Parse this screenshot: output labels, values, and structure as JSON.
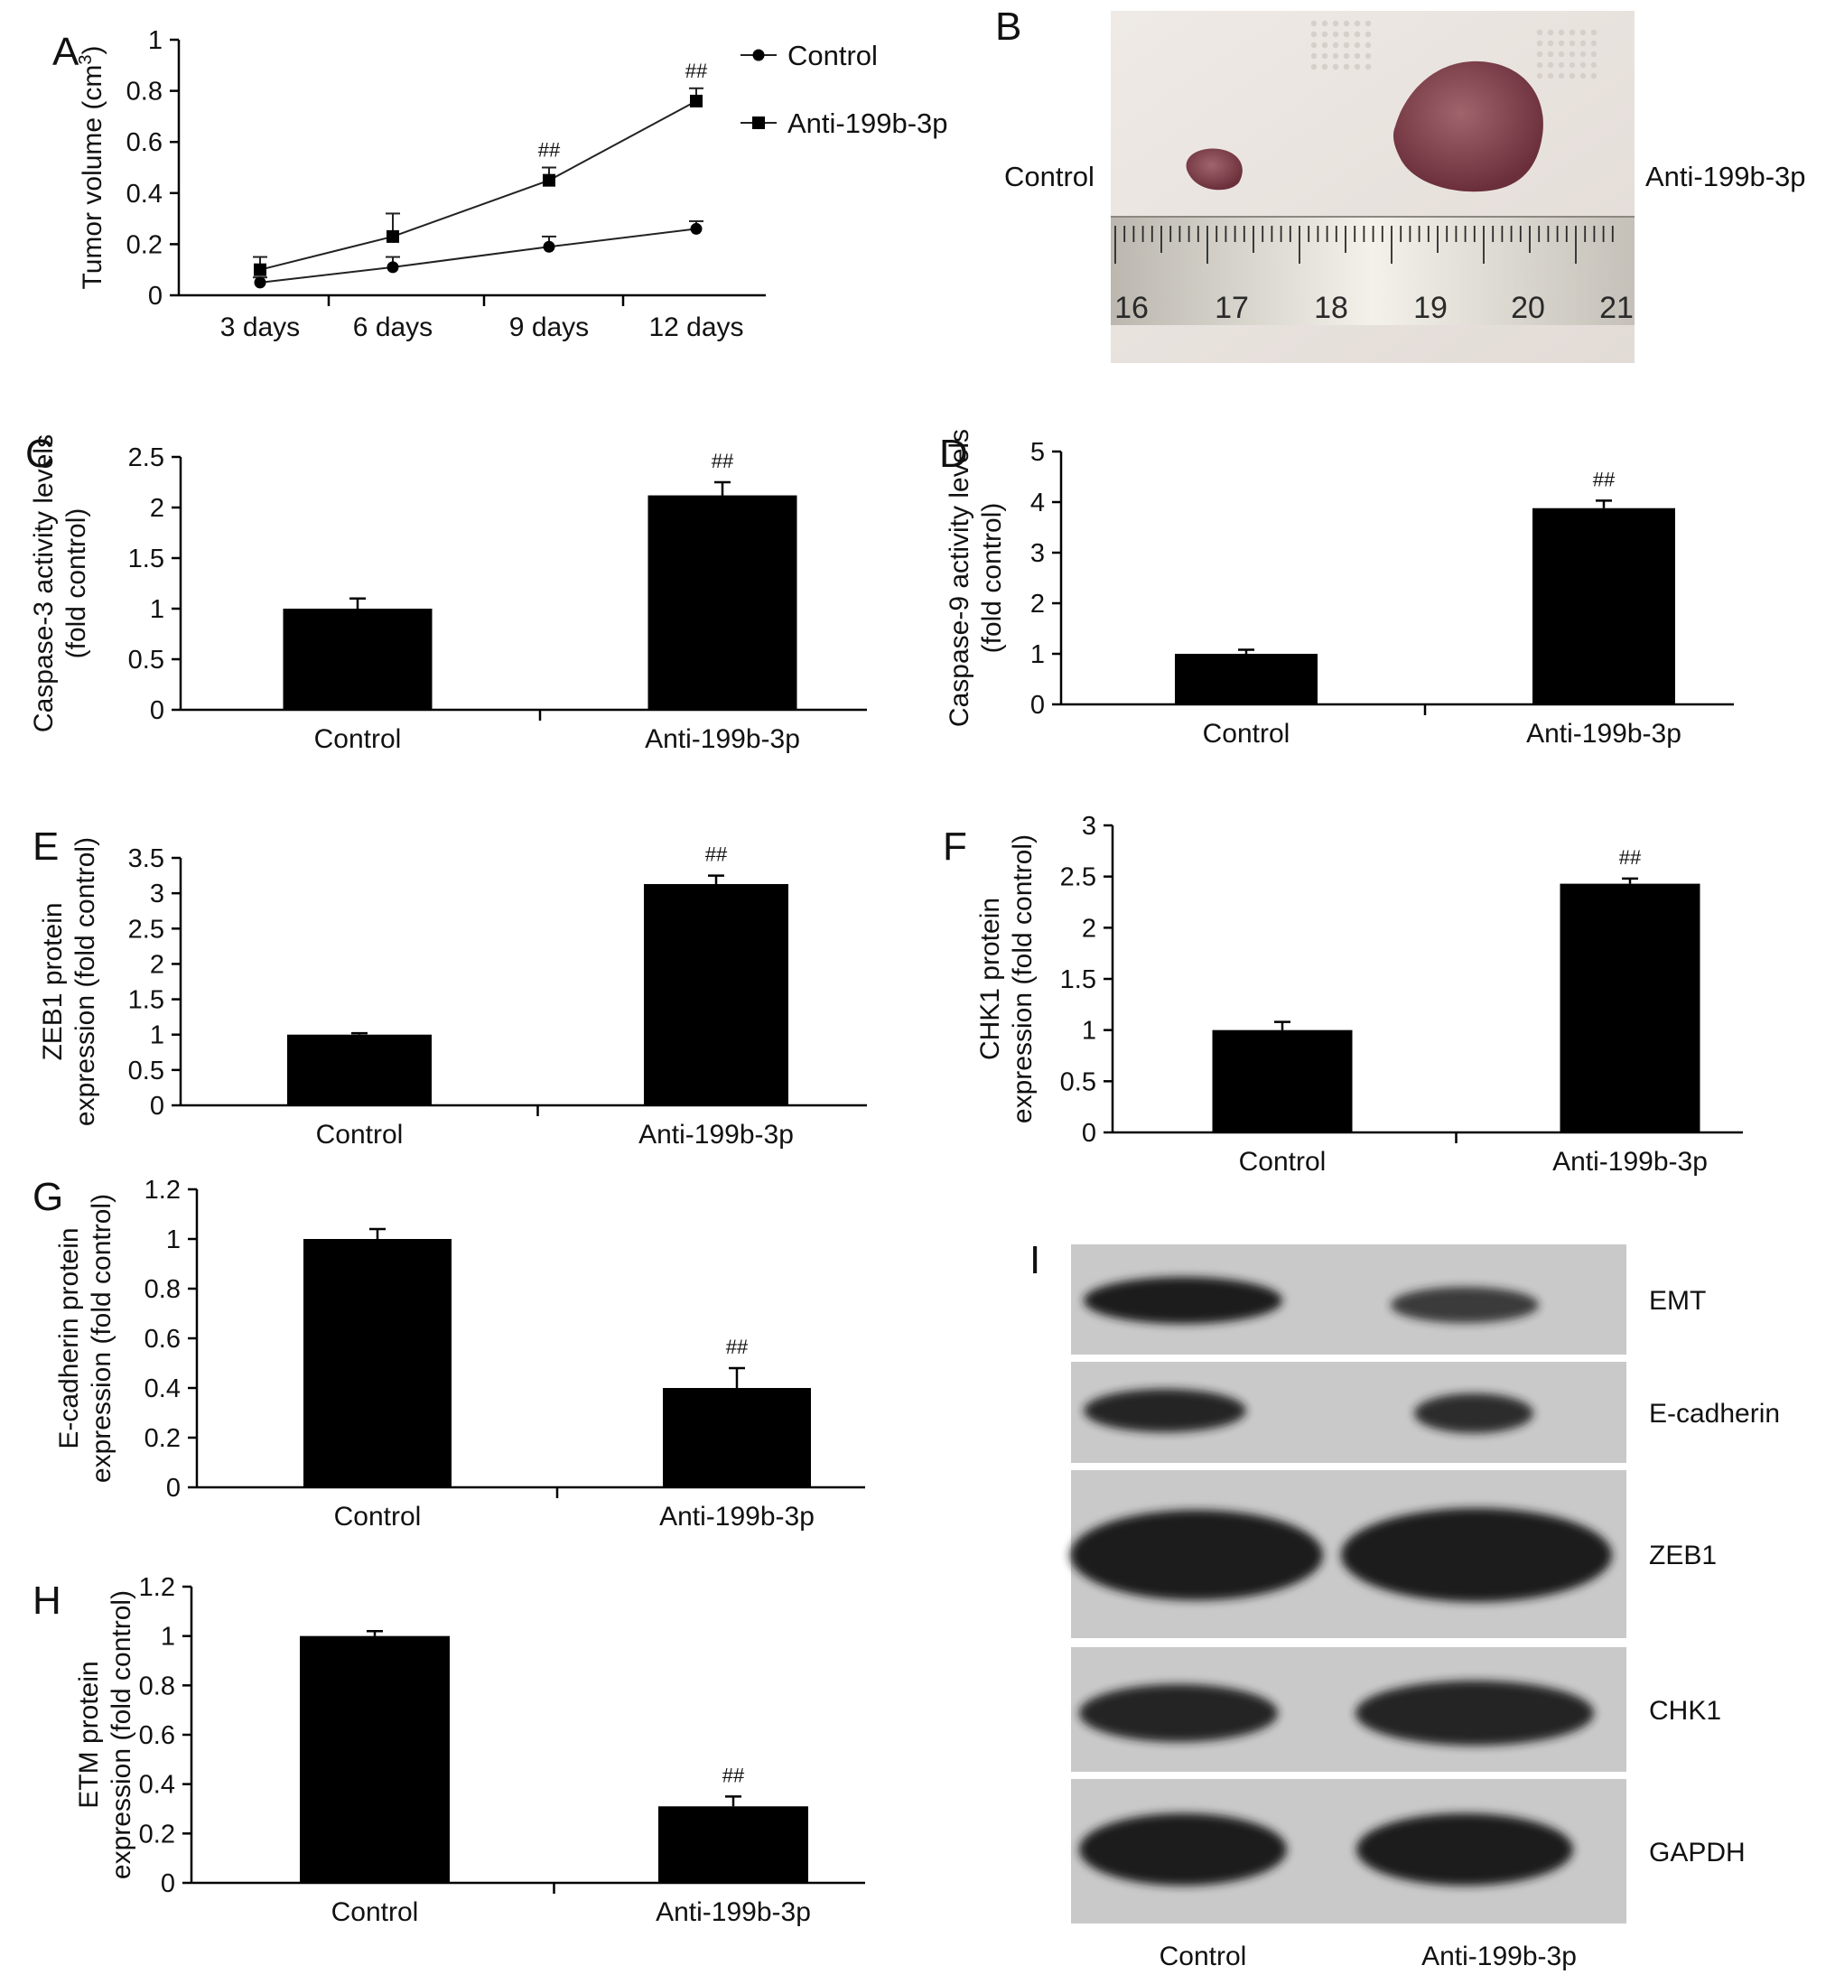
{
  "chart_data": [
    {
      "panel": "A",
      "type": "line",
      "x": [
        "3 days",
        "6 days",
        "9 days",
        "12 days"
      ],
      "ylabel_main": "Tumor volume (cm",
      "ylabel_sup": "3",
      "ylabel_end": ")",
      "ylim": [
        0,
        1
      ],
      "yticks": [
        "0",
        "0.2",
        "0.4",
        "0.6",
        "0.8",
        "1"
      ],
      "series": [
        {
          "name": "Control",
          "marker": "circle",
          "values": [
            0.05,
            0.11,
            0.19,
            0.26
          ],
          "errors": [
            0.02,
            0.04,
            0.04,
            0.03
          ]
        },
        {
          "name": "Anti-199b-3p",
          "marker": "square",
          "values": [
            0.1,
            0.23,
            0.45,
            0.76
          ],
          "errors": [
            0.05,
            0.09,
            0.05,
            0.05
          ]
        }
      ],
      "annotations": [
        {
          "x": "9 days",
          "series": "Anti-199b-3p",
          "text": "##"
        },
        {
          "x": "12 days",
          "series": "Anti-199b-3p",
          "text": "##"
        }
      ],
      "legend": "top-right"
    },
    {
      "panel": "C",
      "type": "bar",
      "categories": [
        "Control",
        "Anti-199b-3p"
      ],
      "values": [
        1.0,
        2.12
      ],
      "errors": [
        0.1,
        0.13
      ],
      "ylabel": [
        "Caspase-3 activity levels",
        "(fold control)"
      ],
      "ylim": [
        0,
        2.5
      ],
      "yticks": [
        "0",
        "0.5",
        "1",
        "1.5",
        "2",
        "2.5"
      ],
      "annotation": "##"
    },
    {
      "panel": "D",
      "type": "bar",
      "categories": [
        "Control",
        "Anti-199b-3p"
      ],
      "values": [
        1.0,
        3.88
      ],
      "errors": [
        0.08,
        0.15
      ],
      "ylabel": [
        "Caspase-9 activity levels",
        "(fold control)"
      ],
      "ylim": [
        0,
        5
      ],
      "yticks": [
        "0",
        "1",
        "2",
        "3",
        "4",
        "5"
      ],
      "annotation": "##"
    },
    {
      "panel": "E",
      "type": "bar",
      "categories": [
        "Control",
        "Anti-199b-3p"
      ],
      "values": [
        1.0,
        3.13
      ],
      "errors": [
        0.02,
        0.12
      ],
      "ylabel": [
        "ZEB1 protein",
        "expression (fold control)"
      ],
      "ylim": [
        0,
        3.5
      ],
      "yticks": [
        "0",
        "0.5",
        "1",
        "1.5",
        "2",
        "2.5",
        "3",
        "3.5"
      ],
      "annotation": "##"
    },
    {
      "panel": "F",
      "type": "bar",
      "categories": [
        "Control",
        "Anti-199b-3p"
      ],
      "values": [
        1.0,
        2.43
      ],
      "errors": [
        0.08,
        0.05
      ],
      "ylabel": [
        "CHK1 protein",
        "expression (fold control)"
      ],
      "ylim": [
        0,
        3
      ],
      "yticks": [
        "0",
        "0.5",
        "1",
        "1.5",
        "2",
        "2.5",
        "3"
      ],
      "annotation": "##"
    },
    {
      "panel": "G",
      "type": "bar",
      "categories": [
        "Control",
        "Anti-199b-3p"
      ],
      "values": [
        1.0,
        0.4
      ],
      "errors": [
        0.04,
        0.08
      ],
      "ylabel": [
        "E-cadherin protein",
        "expression (fold control)"
      ],
      "ylim": [
        0,
        1.2
      ],
      "yticks": [
        "0",
        "0.2",
        "0.4",
        "0.6",
        "0.8",
        "1",
        "1.2"
      ],
      "annotation": "##"
    },
    {
      "panel": "H",
      "type": "bar",
      "categories": [
        "Control",
        "Anti-199b-3p"
      ],
      "values": [
        1.0,
        0.31
      ],
      "errors": [
        0.02,
        0.04
      ],
      "ylabel": [
        "ETM protein",
        "expression (fold control)"
      ],
      "ylim": [
        0,
        1.2
      ],
      "yticks": [
        "0",
        "0.2",
        "0.4",
        "0.6",
        "0.8",
        "1",
        "1.2"
      ],
      "annotation": "##"
    }
  ],
  "photo": {
    "panel": "B",
    "left_label": "Control",
    "right_label": "Anti-199b-3p",
    "ruler_numbers": [
      "16",
      "17",
      "18",
      "19",
      "20",
      "21"
    ]
  },
  "western_blot": {
    "panel": "I",
    "bands": [
      "EMT",
      "E-cadherin",
      "ZEB1",
      "CHK1",
      "GAPDH"
    ],
    "lanes": [
      "Control",
      "Anti-199b-3p"
    ]
  },
  "colors": {
    "bar": "#000000",
    "axis": "#000000",
    "blot_bg": "#c9c9c9",
    "band": "#1a1a1a"
  }
}
